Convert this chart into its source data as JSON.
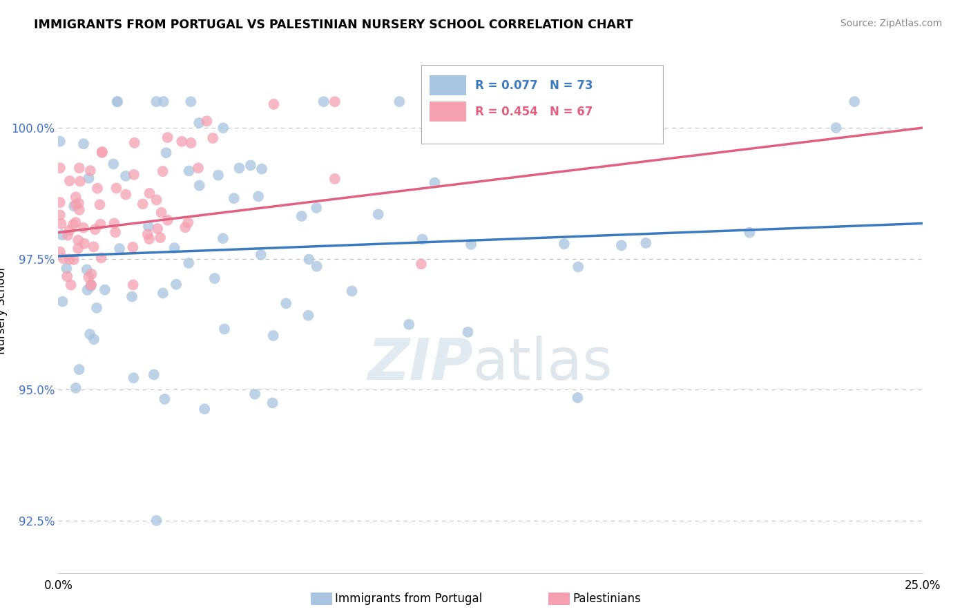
{
  "title": "IMMIGRANTS FROM PORTUGAL VS PALESTINIAN NURSERY SCHOOL CORRELATION CHART",
  "source": "Source: ZipAtlas.com",
  "ylabel": "Nursery School",
  "ytick_values": [
    92.5,
    95.0,
    97.5,
    100.0
  ],
  "xlim": [
    0.0,
    25.0
  ],
  "ylim": [
    91.5,
    101.5
  ],
  "legend_blue_label": "Immigrants from Portugal",
  "legend_pink_label": "Palestinians",
  "r_blue": 0.077,
  "n_blue": 73,
  "r_pink": 0.454,
  "n_pink": 67,
  "blue_color": "#a8c4e0",
  "pink_color": "#f4a0b0",
  "line_blue": "#3a7abf",
  "line_pink": "#e06080",
  "watermark_zip": "ZIP",
  "watermark_atlas": "atlas"
}
